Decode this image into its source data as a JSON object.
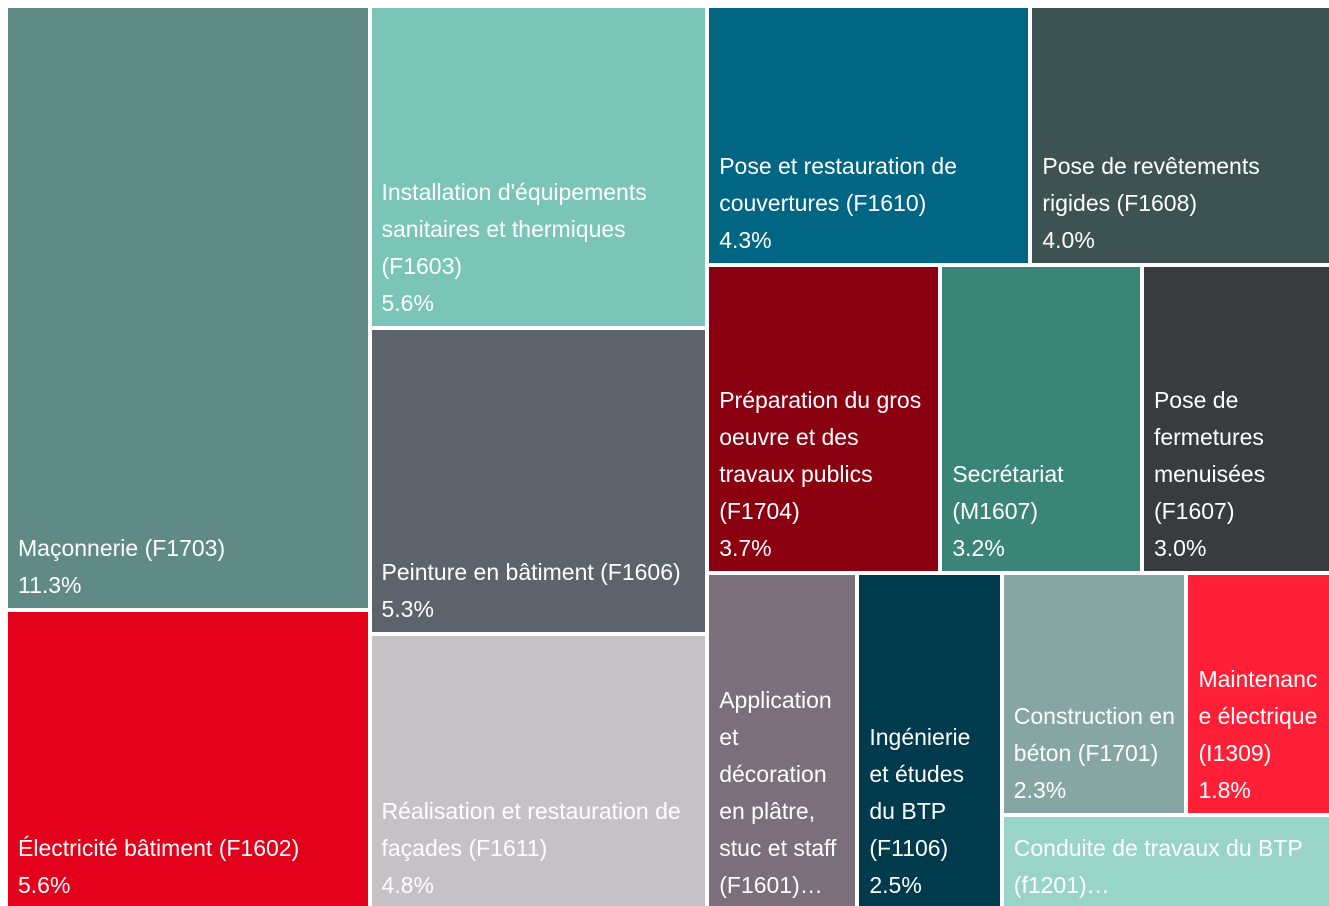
{
  "chart_data": {
    "type": "treemap",
    "categories": [
      "Maçonnerie (F1703)",
      "Électricité bâtiment (F1602)",
      "Installation d'équipements sanitaires et thermiques (F1603)",
      "Peinture en bâtiment (F1606)",
      "Réalisation et restauration de façades (F1611)",
      "Pose et restauration de couvertures (F1610)",
      "Pose de revêtements rigides (F1608)",
      "Préparation du gros oeuvre et des travaux publics (F1704)",
      "Secrétariat (M1607)",
      "Pose de fermetures menuisées (F1607)",
      "Application et décoration en plâtre, stuc et staff (F1601)…",
      "Ingénierie et études du BTP (F1106)",
      "Construction en béton (F1701)",
      "Maintenance électrique (I1309)",
      "Conduite de travaux du BTP (f1201)…"
    ],
    "values": [
      11.3,
      5.6,
      5.6,
      5.3,
      4.8,
      4.3,
      4.0,
      3.7,
      3.2,
      3.0,
      2.6,
      2.5,
      2.3,
      1.8,
      1.6
    ],
    "value_labels": [
      "11.3%",
      "5.6%",
      "5.6%",
      "5.3%",
      "4.8%",
      "4.3%",
      "4.0%",
      "3.7%",
      "3.2%",
      "3.0%",
      null,
      "2.5%",
      "2.3%",
      "1.8%",
      null
    ],
    "colors": [
      "#5f8a86",
      "#e2001a",
      "#7ac5b8",
      "#5c636b",
      "#c6c1c5",
      "#006683",
      "#3d5352",
      "#8a0011",
      "#3a8578",
      "#393b3f",
      "#7a6f7b",
      "#003a4d",
      "#85a6a2",
      "#ff2037",
      "#98d5c8"
    ]
  }
}
